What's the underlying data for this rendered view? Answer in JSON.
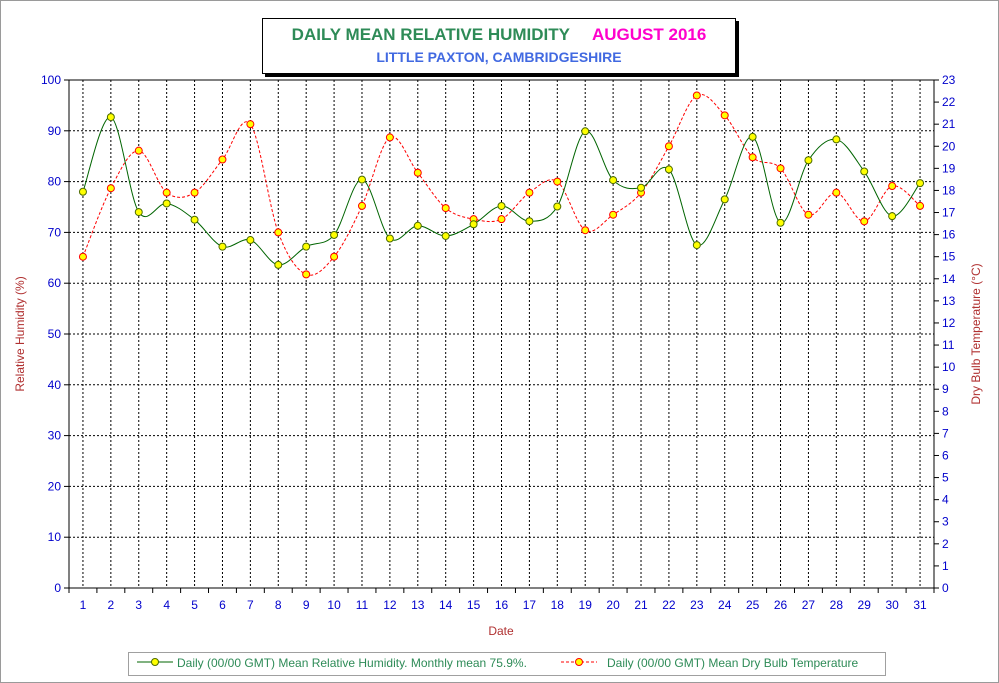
{
  "title": {
    "main": "DAILY MEAN RELATIVE HUMIDITY",
    "month": "AUGUST 2016",
    "subtitle": "LITTLE PAXTON, CAMBRIDGESHIRE"
  },
  "colors": {
    "title_main": "#2e8b57",
    "title_month": "#ff00cc",
    "subtitle": "#4169e1",
    "humidity_line": "#006400",
    "humidity_marker": "#ffff00",
    "temperature_line": "#ff0000",
    "temperature_marker": "#ffff00",
    "axis_text": "#0000cc",
    "axis_label": "#b03030"
  },
  "chart_data": {
    "type": "line",
    "x": [
      1,
      2,
      3,
      4,
      5,
      6,
      7,
      8,
      9,
      10,
      11,
      12,
      13,
      14,
      15,
      16,
      17,
      18,
      19,
      20,
      21,
      22,
      23,
      24,
      25,
      26,
      27,
      28,
      29,
      30,
      31
    ],
    "xlabel": "Date",
    "ylabel_left": "Relative Humidity (%)",
    "ylabel_right": "Dry Bulb Temperature (°C)",
    "ylim_left": [
      0,
      100
    ],
    "ylim_right": [
      0,
      23
    ],
    "yticks_left": [
      0,
      10,
      20,
      30,
      40,
      50,
      60,
      70,
      80,
      90,
      100
    ],
    "yticks_right": [
      0,
      1,
      2,
      3,
      4,
      5,
      6,
      7,
      8,
      9,
      10,
      11,
      12,
      13,
      14,
      15,
      16,
      17,
      18,
      19,
      20,
      21,
      22,
      23
    ],
    "grid": true,
    "legend_position": "bottom",
    "series": [
      {
        "name": "Daily (00/00 GMT) Mean Relative Humidity. Monthly mean 75.9%.",
        "axis": "left",
        "style": "solid",
        "values": [
          78.0,
          92.7,
          74.0,
          75.7,
          72.5,
          67.2,
          68.5,
          63.6,
          67.2,
          69.5,
          80.4,
          68.8,
          71.3,
          69.3,
          71.6,
          75.2,
          72.2,
          75.1,
          89.9,
          80.3,
          78.8,
          82.4,
          67.5,
          76.5,
          88.8,
          71.9,
          84.2,
          88.3,
          82.0,
          73.2,
          79.7
        ]
      },
      {
        "name": "Daily (00/00 GMT) Mean Dry Bulb Temperature",
        "axis": "right",
        "style": "dashed",
        "values": [
          15.0,
          18.1,
          19.8,
          17.9,
          17.9,
          19.4,
          21.0,
          16.1,
          14.2,
          15.0,
          17.3,
          20.4,
          18.8,
          17.2,
          16.7,
          16.7,
          17.9,
          18.4,
          16.2,
          16.9,
          17.9,
          20.0,
          22.3,
          21.4,
          19.5,
          19.0,
          16.9,
          17.9,
          16.6,
          18.2,
          17.3
        ]
      }
    ]
  }
}
